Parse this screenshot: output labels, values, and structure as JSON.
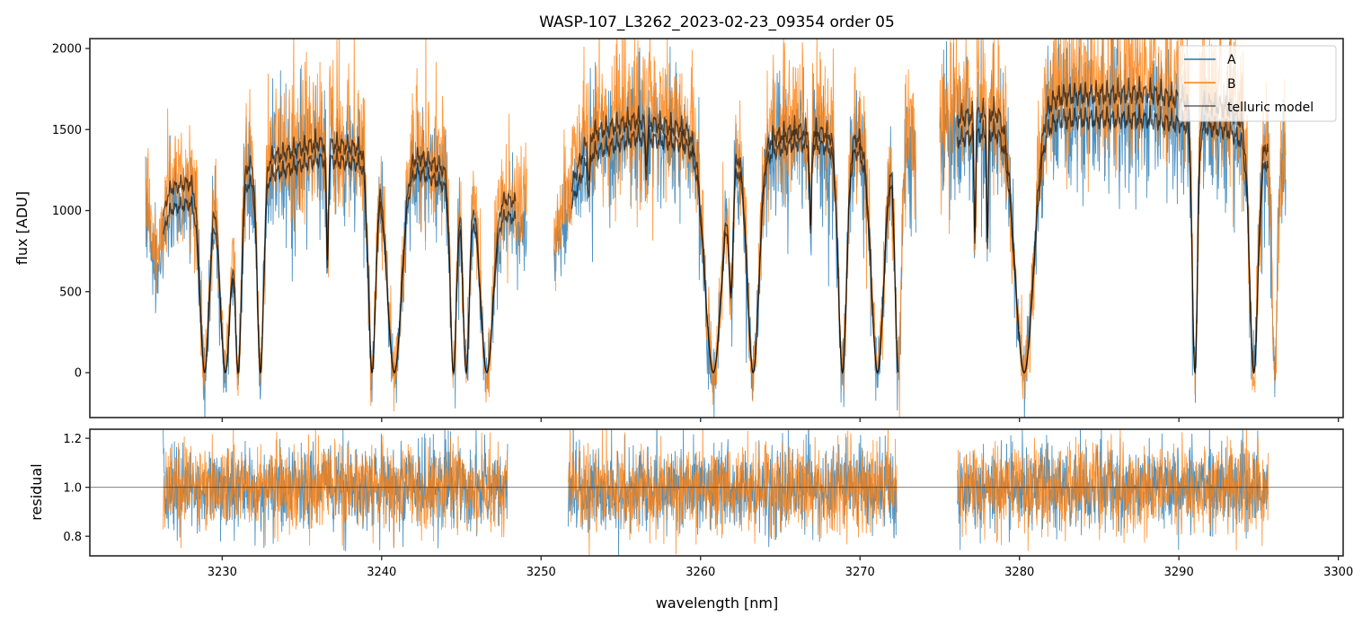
{
  "chart_data": {
    "type": "line",
    "note": "Only the labels, ranges, legend and band structure below are read from the image. The dense A/B sample traces and their noise are synthesized by the page script from these parameters and are not measured values.",
    "title": "WASP-107_L3262_2023-02-23_09354  order 05",
    "xlabel": "wavelength [nm]",
    "xlim": [
      3221.7,
      3300.3
    ],
    "x_ticks": [
      3230,
      3240,
      3250,
      3260,
      3270,
      3280,
      3290,
      3300
    ],
    "x_tick_labels": [
      "3230",
      "3240",
      "3250",
      "3260",
      "3270",
      "3280",
      "3290",
      "3300"
    ],
    "panels": [
      {
        "name": "flux",
        "ylabel": "flux [ADU]",
        "ylim": [
          -277,
          2061
        ],
        "y_ticks": [
          0,
          500,
          1000,
          1500,
          2000
        ],
        "y_tick_labels": [
          "0",
          "500",
          "1000",
          "1500",
          "2000"
        ],
        "legend": {
          "placement": "upper right",
          "entries": [
            "A",
            "B",
            "telluric model"
          ]
        },
        "series": [
          {
            "name": "A",
            "color": "#1f77b4",
            "noise_frac": 0.11
          },
          {
            "name": "B",
            "color": "#ff7f0e",
            "noise_frac": 0.12
          },
          {
            "name": "telluric model",
            "color": "#000000",
            "alpha": 0.6
          }
        ],
        "segments": [
          {
            "data_range": [
              3225.2,
              3249.1
            ],
            "model_range": [
              3226.3,
              3248.4
            ],
            "continuum_A": [
              [
                3225.2,
                1050
              ],
              [
                3236,
                1450
              ],
              [
                3242,
                1380
              ],
              [
                3249.1,
                1000
              ]
            ],
            "continuum_B": [
              [
                3225.2,
                1200
              ],
              [
                3236,
                1560
              ],
              [
                3242,
                1480
              ],
              [
                3249.1,
                1120
              ]
            ],
            "bands": [
              [
                3225.9,
                0.35,
                0.5
              ],
              [
                3228.9,
                1.0,
                0.45
              ],
              [
                3230.2,
                1.0,
                0.5
              ],
              [
                3231.0,
                1.0,
                0.3
              ],
              [
                3232.4,
                1.0,
                0.3
              ],
              [
                3236.6,
                0.5,
                0.1
              ],
              [
                3239.4,
                1.0,
                0.35
              ],
              [
                3240.8,
                1.0,
                0.7
              ],
              [
                3244.5,
                1.0,
                0.3
              ],
              [
                3245.3,
                1.0,
                0.3
              ],
              [
                3246.6,
                1.0,
                0.6
              ]
            ]
          },
          {
            "data_range": [
              3250.8,
              3273.5
            ],
            "model_range": [
              3251.9,
              3272.4
            ],
            "continuum_A": [
              [
                3250.8,
                800
              ],
              [
                3253,
                1480
              ],
              [
                3256,
                1600
              ],
              [
                3259,
                1550
              ],
              [
                3262,
                1400
              ],
              [
                3266,
                1560
              ],
              [
                3273.5,
                1450
              ]
            ],
            "continuum_B": [
              [
                3250.8,
                900
              ],
              [
                3253,
                1620
              ],
              [
                3256,
                1720
              ],
              [
                3259,
                1650
              ],
              [
                3262,
                1500
              ],
              [
                3266,
                1650
              ],
              [
                3273.5,
                1550
              ]
            ],
            "bands": [
              [
                3253.0,
                0.2,
                0.1
              ],
              [
                3256.6,
                0.15,
                0.1
              ],
              [
                3260.8,
                1.0,
                0.8
              ],
              [
                3261.9,
                0.6,
                0.2
              ],
              [
                3263.3,
                1.0,
                0.55
              ],
              [
                3266.9,
                0.4,
                0.1
              ],
              [
                3268.9,
                1.0,
                0.4
              ],
              [
                3271.1,
                1.0,
                0.6
              ],
              [
                3272.4,
                1.0,
                0.3
              ]
            ]
          },
          {
            "data_range": [
              3275.0,
              3296.7
            ],
            "model_range": [
              3276.1,
              3295.6
            ],
            "continuum_A": [
              [
                3275.0,
                1550
              ],
              [
                3277.5,
                1620
              ],
              [
                3283,
                1720
              ],
              [
                3288,
                1720
              ],
              [
                3293,
                1650
              ],
              [
                3296.7,
                1350
              ]
            ],
            "continuum_B": [
              [
                3275.0,
                1700
              ],
              [
                3277.5,
                1760
              ],
              [
                3283,
                1880
              ],
              [
                3288,
                1900
              ],
              [
                3293,
                1800
              ],
              [
                3296.7,
                1450
              ]
            ],
            "bands": [
              [
                3277.2,
                0.45,
                0.08
              ],
              [
                3278.0,
                0.5,
                0.08
              ],
              [
                3280.3,
                1.0,
                0.9
              ],
              [
                3291.0,
                1.0,
                0.25
              ],
              [
                3294.7,
                1.0,
                0.4
              ],
              [
                3296.0,
                1.0,
                0.25
              ]
            ]
          }
        ]
      },
      {
        "name": "residual",
        "ylabel": "residual",
        "ylim": [
          0.72,
          1.237
        ],
        "y_ticks": [
          0.8,
          1.0,
          1.2
        ],
        "y_tick_labels": [
          "0.8",
          "1.0",
          "1.2"
        ],
        "reference_line": 1.0,
        "segments": [
          [
            3226.3,
            3247.9
          ],
          [
            3251.7,
            3272.3
          ],
          [
            3276.1,
            3295.6
          ]
        ],
        "noise_sigma": 0.085
      }
    ]
  }
}
